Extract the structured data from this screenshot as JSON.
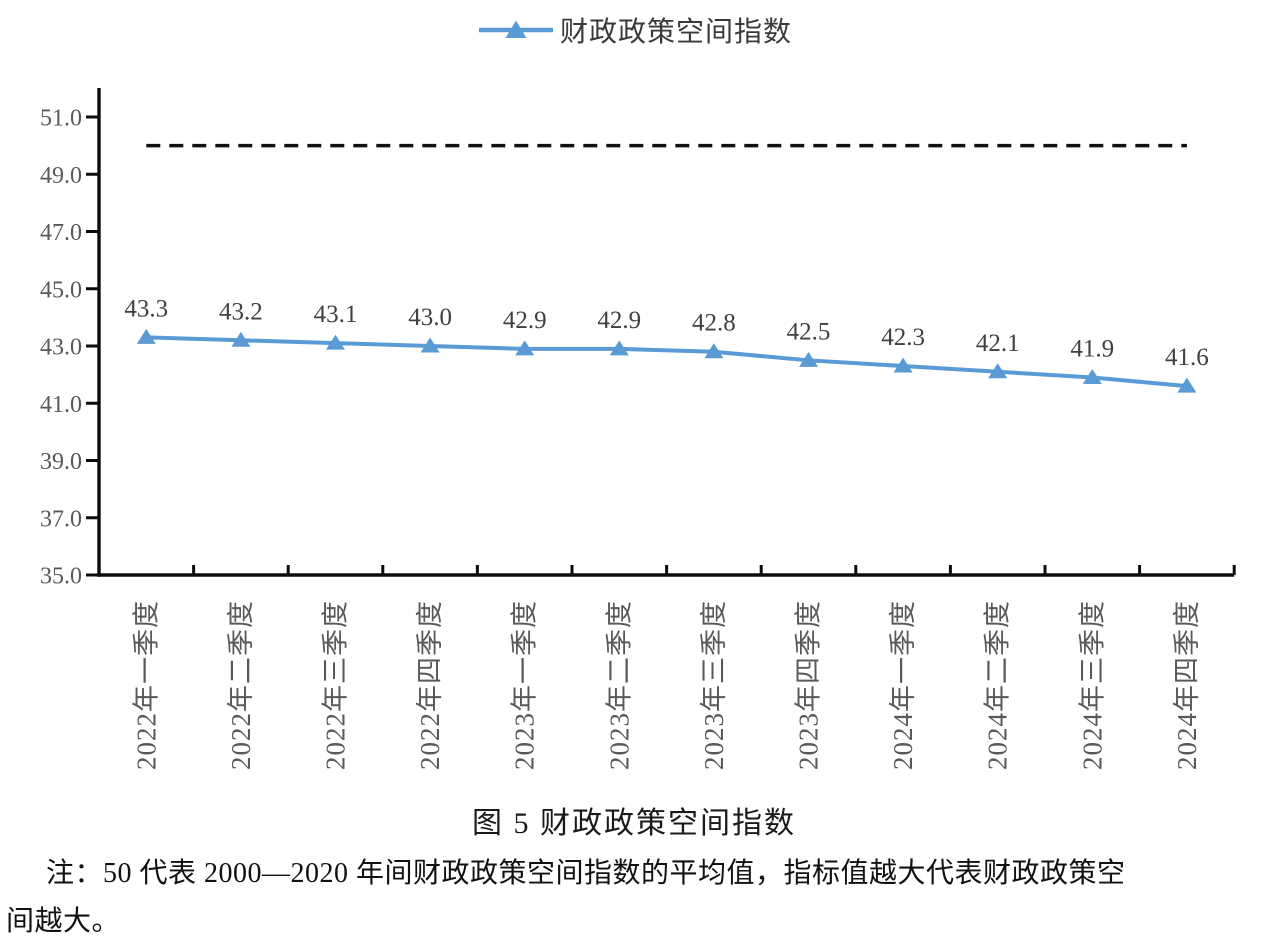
{
  "legend": {
    "label": "财政政策空间指数"
  },
  "caption": "图 5 财政政策空间指数",
  "note": {
    "line1": "注：50 代表 2000—2020 年间财政政策空间指数的平均值，指标值越大代表财政政策空",
    "line2": "间越大。"
  },
  "colors": {
    "series_blue": "#5B9BD5",
    "baseline_black": "#111111",
    "axis_black": "#0d0d0d",
    "tick_label_gray": "#595959",
    "data_label_gray": "#404040"
  },
  "chart_data": {
    "type": "line",
    "title": "财政政策空间指数",
    "categories": [
      "2022年一季度",
      "2022年二季度",
      "2022年三季度",
      "2022年四季度",
      "2023年一季度",
      "2023年二季度",
      "2023年三季度",
      "2023年四季度",
      "2024年一季度",
      "2024年二季度",
      "2024年三季度",
      "2024年四季度"
    ],
    "series": [
      {
        "name": "财政政策空间指数",
        "color": "#5B9BD5",
        "marker": "triangle",
        "values": [
          43.3,
          43.2,
          43.1,
          43.0,
          42.9,
          42.9,
          42.8,
          42.5,
          42.3,
          42.1,
          41.9,
          41.6
        ]
      }
    ],
    "baseline": {
      "value": 50,
      "style": "dashed",
      "color": "#111111"
    },
    "ylim": [
      35,
      51
    ],
    "ytick_step": 2,
    "ytick_labels": [
      "35.0",
      "37.0",
      "39.0",
      "41.0",
      "43.0",
      "45.0",
      "47.0",
      "49.0",
      "51.0"
    ],
    "xlabel": "",
    "ylabel": "",
    "legend_position": "top",
    "grid": false,
    "data_label_format": "one_decimal"
  }
}
